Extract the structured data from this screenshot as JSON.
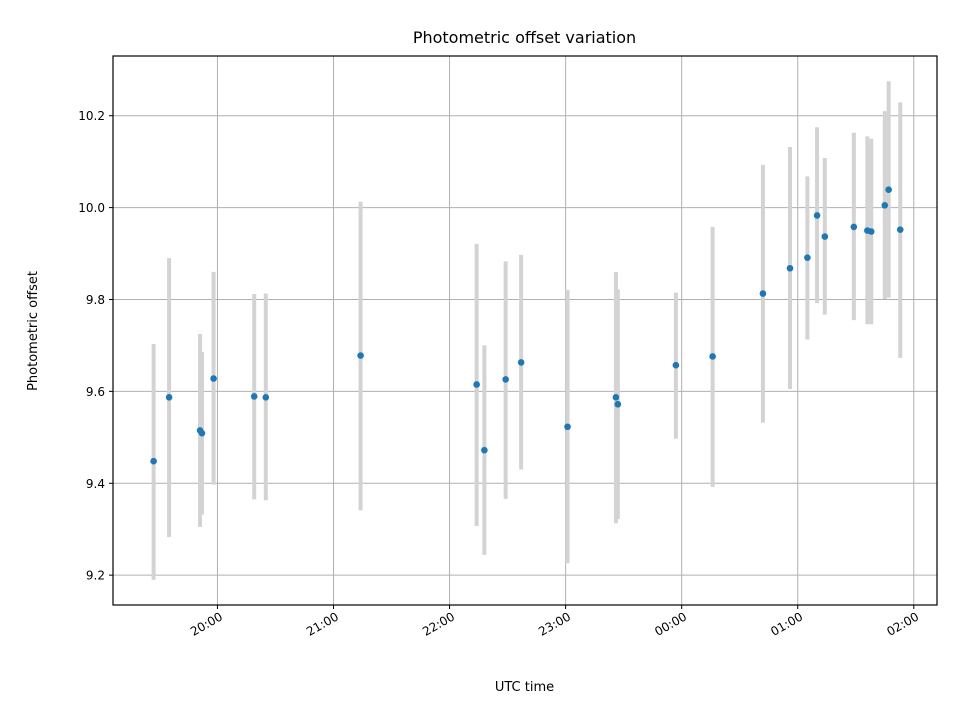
{
  "chart_data": {
    "type": "scatter",
    "title": "Photometric offset variation",
    "xlabel": "UTC time",
    "ylabel": "Photometric offset",
    "x_axis": {
      "kind": "time",
      "start": "19:06",
      "end": "02:12",
      "tick_values": [
        "20:00",
        "21:00",
        "22:00",
        "23:00",
        "00:00",
        "01:00",
        "02:00"
      ],
      "tick_labels": [
        "20:00",
        "21:00",
        "22:00",
        "23:00",
        "00:00",
        "01:00",
        "02:00"
      ]
    },
    "ylim": [
      9.135,
      10.33
    ],
    "y_ticks": [
      "9.2",
      "9.4",
      "9.6",
      "9.8",
      "10.0",
      "10.2"
    ],
    "grid": true,
    "marker_color": "#1f77b4",
    "errorbar_color": "#d3d3d3",
    "points": [
      {
        "t": "19:27",
        "y": 9.448,
        "lo": 9.19,
        "hi": 9.703
      },
      {
        "t": "19:35",
        "y": 9.587,
        "lo": 9.283,
        "hi": 9.89
      },
      {
        "t": "19:51",
        "y": 9.515,
        "lo": 9.305,
        "hi": 9.725
      },
      {
        "t": "19:52",
        "y": 9.509,
        "lo": 9.332,
        "hi": 9.686
      },
      {
        "t": "19:58",
        "y": 9.628,
        "lo": 9.397,
        "hi": 9.86
      },
      {
        "t": "20:19",
        "y": 9.589,
        "lo": 9.365,
        "hi": 9.812
      },
      {
        "t": "20:25",
        "y": 9.587,
        "lo": 9.363,
        "hi": 9.813
      },
      {
        "t": "21:14",
        "y": 9.678,
        "lo": 9.341,
        "hi": 10.013
      },
      {
        "t": "22:14",
        "y": 9.615,
        "lo": 9.307,
        "hi": 9.921
      },
      {
        "t": "22:18",
        "y": 9.472,
        "lo": 9.244,
        "hi": 9.7
      },
      {
        "t": "22:29",
        "y": 9.626,
        "lo": 9.366,
        "hi": 9.883
      },
      {
        "t": "22:37",
        "y": 9.663,
        "lo": 9.43,
        "hi": 9.897
      },
      {
        "t": "23:01",
        "y": 9.523,
        "lo": 9.226,
        "hi": 9.821
      },
      {
        "t": "23:26",
        "y": 9.587,
        "lo": 9.313,
        "hi": 9.86
      },
      {
        "t": "23:27",
        "y": 9.572,
        "lo": 9.322,
        "hi": 9.822
      },
      {
        "t": "23:57",
        "y": 9.657,
        "lo": 9.497,
        "hi": 9.815
      },
      {
        "t": "00:16",
        "y": 9.676,
        "lo": 9.392,
        "hi": 9.958
      },
      {
        "t": "00:42",
        "y": 9.813,
        "lo": 9.532,
        "hi": 10.093
      },
      {
        "t": "00:56",
        "y": 9.868,
        "lo": 9.605,
        "hi": 10.132
      },
      {
        "t": "01:05",
        "y": 9.891,
        "lo": 9.713,
        "hi": 10.068
      },
      {
        "t": "01:10",
        "y": 9.983,
        "lo": 9.792,
        "hi": 10.175
      },
      {
        "t": "01:14",
        "y": 9.937,
        "lo": 9.767,
        "hi": 10.108
      },
      {
        "t": "01:29",
        "y": 9.958,
        "lo": 9.755,
        "hi": 10.163
      },
      {
        "t": "01:36",
        "y": 9.95,
        "lo": 9.746,
        "hi": 10.155
      },
      {
        "t": "01:38",
        "y": 9.948,
        "lo": 9.746,
        "hi": 10.15
      },
      {
        "t": "01:45",
        "y": 10.005,
        "lo": 9.801,
        "hi": 10.21
      },
      {
        "t": "01:47",
        "y": 10.039,
        "lo": 9.804,
        "hi": 10.275
      },
      {
        "t": "01:53",
        "y": 9.952,
        "lo": 9.673,
        "hi": 10.229
      }
    ]
  }
}
